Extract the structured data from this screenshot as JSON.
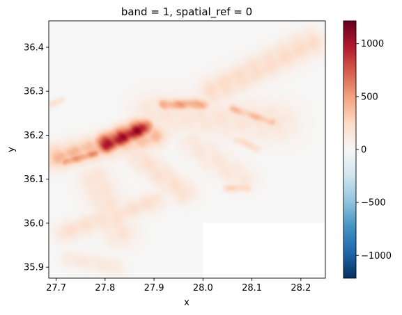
{
  "chart_data": {
    "type": "heatmap",
    "title": "band = 1, spatial_ref = 0",
    "xlabel": "x",
    "ylabel": "y",
    "xlim": [
      27.685,
      28.25
    ],
    "ylim": [
      35.875,
      36.46
    ],
    "x_ticks": [
      {
        "value": 27.7,
        "label": "27.7"
      },
      {
        "value": 27.8,
        "label": "27.8"
      },
      {
        "value": 27.9,
        "label": "27.9"
      },
      {
        "value": 28.0,
        "label": "28.0"
      },
      {
        "value": 28.1,
        "label": "28.1"
      },
      {
        "value": 28.2,
        "label": "28.2"
      }
    ],
    "y_ticks": [
      {
        "value": 35.9,
        "label": "35.9"
      },
      {
        "value": 36.0,
        "label": "36.0"
      },
      {
        "value": 36.1,
        "label": "36.1"
      },
      {
        "value": 36.2,
        "label": "36.2"
      },
      {
        "value": 36.3,
        "label": "36.3"
      },
      {
        "value": 36.4,
        "label": "36.4"
      }
    ],
    "colorbar": {
      "colormap": "RdBu_r",
      "vmin": -1215,
      "vmax": 1215,
      "ticks": [
        {
          "value": 1000,
          "label": "1000"
        },
        {
          "value": 500,
          "label": "500"
        },
        {
          "value": 0,
          "label": "0"
        },
        {
          "value": -500,
          "label": "−500"
        },
        {
          "value": -1000,
          "label": "−1000"
        }
      ],
      "stops": [
        {
          "t": 0.0,
          "color": "#053061"
        },
        {
          "t": 0.1,
          "color": "#2166ac"
        },
        {
          "t": 0.2,
          "color": "#4393c3"
        },
        {
          "t": 0.3,
          "color": "#92c5de"
        },
        {
          "t": 0.4,
          "color": "#d1e5f0"
        },
        {
          "t": 0.5,
          "color": "#f7f7f7"
        },
        {
          "t": 0.6,
          "color": "#fddbc7"
        },
        {
          "t": 0.7,
          "color": "#f4a582"
        },
        {
          "t": 0.8,
          "color": "#d6604d"
        },
        {
          "t": 0.9,
          "color": "#b2182b"
        },
        {
          "t": 1.0,
          "color": "#67001f"
        }
      ]
    },
    "background_value": 0,
    "nodata_region": {
      "x": [
        28.0,
        28.25
      ],
      "y": [
        35.875,
        36.0
      ]
    },
    "terrain": [
      {
        "type": "ridge",
        "x1": 27.8,
        "y1": 36.18,
        "x2": 27.875,
        "y2": 36.215,
        "width": 0.028,
        "value": 1150
      },
      {
        "type": "ridge",
        "x1": 27.7,
        "y1": 36.15,
        "x2": 27.9,
        "y2": 36.2,
        "width": 0.035,
        "value": 450
      },
      {
        "type": "ridge",
        "x1": 27.72,
        "y1": 36.14,
        "x2": 27.78,
        "y2": 36.16,
        "width": 0.015,
        "value": 650
      },
      {
        "type": "ridge",
        "x1": 27.92,
        "y1": 36.27,
        "x2": 28.0,
        "y2": 36.27,
        "width": 0.018,
        "value": 550
      },
      {
        "type": "ridge",
        "x1": 27.9,
        "y1": 36.25,
        "x2": 28.15,
        "y2": 36.23,
        "width": 0.06,
        "value": 180
      },
      {
        "type": "ridge",
        "x1": 28.02,
        "y1": 36.3,
        "x2": 28.22,
        "y2": 36.41,
        "width": 0.04,
        "value": 260
      },
      {
        "type": "ridge",
        "x1": 28.06,
        "y1": 36.26,
        "x2": 28.14,
        "y2": 36.23,
        "width": 0.015,
        "value": 420
      },
      {
        "type": "ridge",
        "x1": 27.78,
        "y1": 36.1,
        "x2": 27.83,
        "y2": 35.98,
        "width": 0.045,
        "value": 200
      },
      {
        "type": "ridge",
        "x1": 27.72,
        "y1": 35.98,
        "x2": 27.9,
        "y2": 36.05,
        "width": 0.03,
        "value": 220
      },
      {
        "type": "ridge",
        "x1": 27.73,
        "y1": 35.92,
        "x2": 27.82,
        "y2": 35.9,
        "width": 0.025,
        "value": 150
      },
      {
        "type": "ridge",
        "x1": 27.87,
        "y1": 36.15,
        "x2": 27.96,
        "y2": 36.07,
        "width": 0.035,
        "value": 220
      },
      {
        "type": "ridge",
        "x1": 27.98,
        "y1": 36.18,
        "x2": 28.08,
        "y2": 36.1,
        "width": 0.04,
        "value": 160
      },
      {
        "type": "ridge",
        "x1": 28.05,
        "y1": 36.08,
        "x2": 28.09,
        "y2": 36.08,
        "width": 0.012,
        "value": 300
      },
      {
        "type": "ridge",
        "x1": 27.69,
        "y1": 36.27,
        "x2": 27.71,
        "y2": 36.28,
        "width": 0.01,
        "value": 200
      },
      {
        "type": "ridge",
        "x1": 28.07,
        "y1": 36.19,
        "x2": 28.11,
        "y2": 36.17,
        "width": 0.012,
        "value": 260
      }
    ]
  }
}
